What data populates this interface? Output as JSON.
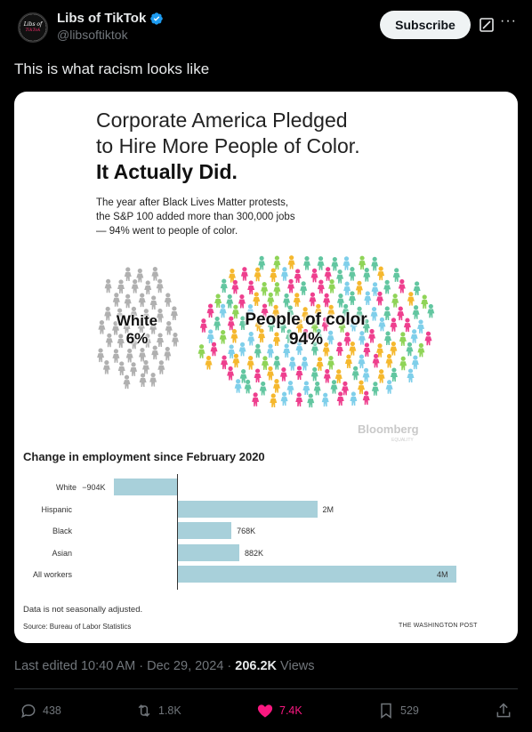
{
  "post": {
    "author_name": "Libs of TikTok",
    "author_handle": "@libsoftiktok",
    "avatar_text_1": "Libs of",
    "avatar_text_2": "TikTok",
    "subscribe_label": "Subscribe",
    "text": "This is what racism looks like"
  },
  "graphic": {
    "title_line1": "Corporate America Pledged",
    "title_line2": "to Hire More People of Color.",
    "title_line3": "It Actually Did.",
    "sub_line1": "The year after Black Lives Matter protests,",
    "sub_line2": "the S&P 100 added more than 300,000 jobs",
    "sub_line3": "— 94% went to people of color.",
    "white_label": "White",
    "white_pct": "6%",
    "poc_label": "People of color",
    "poc_pct": "94%",
    "bloomberg": "Bloomberg",
    "bloomberg_sub": "EQUALITY",
    "emp_title": "Change in employment since February 2020",
    "note": "Data is not seasonally adjusted.",
    "source": "Source: Bureau of Labor Statistics",
    "credit": "THE WASHINGTON POST"
  },
  "chart_data": {
    "type": "bar",
    "title": "Change in employment since February 2020",
    "categories": [
      "White",
      "Hispanic",
      "Black",
      "Asian",
      "All workers"
    ],
    "values": [
      -904000,
      2000000,
      768000,
      882000,
      4000000
    ],
    "value_labels": [
      "−904K",
      "2M",
      "768K",
      "882K",
      "4M"
    ],
    "orientation": "horizontal"
  },
  "pictogram": {
    "white_share": 6,
    "poc_share": 94,
    "white_color": "#b0b0b0",
    "poc_colors": [
      "#f5b82e",
      "#ee3f8e",
      "#62c6a0",
      "#7fcfea",
      "#8fd457"
    ]
  },
  "footer": {
    "edited": "Last edited 10:40 AM · Dec 29, 2024 · ",
    "views_num": "206.2K",
    "views_label": " Views",
    "replies": "438",
    "reposts": "1.8K",
    "likes": "7.4K",
    "bookmarks": "529"
  },
  "colors": {
    "accent_blue": "#1d9bf0",
    "like_pink": "#f91880",
    "bar_fill": "#a8d0da"
  }
}
